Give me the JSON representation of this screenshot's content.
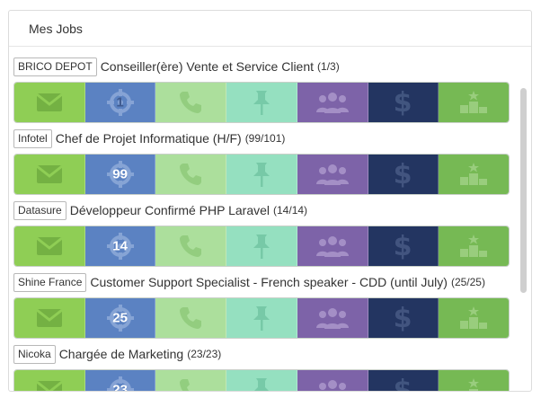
{
  "panel": {
    "title": "Mes Jobs"
  },
  "jobs": [
    {
      "company": "BRICO DEPOT",
      "title": "Conseiller(ère) Vente et Service Client",
      "count": "(1/3)",
      "target_count": "1"
    },
    {
      "company": "Infotel",
      "title": "Chef de Projet Informatique (H/F)",
      "count": "(99/101)",
      "target_count": "99"
    },
    {
      "company": "Datasure",
      "title": "Développeur Confirmé PHP Laravel",
      "count": "(14/14)",
      "target_count": "14"
    },
    {
      "company": "Shine France",
      "title": "Customer Support Specialist - French speaker - CDD (until July)",
      "count": "(25/25)",
      "target_count": "25"
    },
    {
      "company": "Nicoka",
      "title": "Chargée de Marketing",
      "count": "(23/23)",
      "target_count": "23"
    }
  ],
  "stage_icons": [
    "envelope-icon",
    "target-icon",
    "phone-icon",
    "pin-icon",
    "group-icon",
    "dollar-icon",
    "podium-icon"
  ],
  "colors": {
    "stage_1": "#8fce55",
    "stage_2": "#5b82c2",
    "stage_3": "#acdf9c",
    "stage_4": "#95e0c0",
    "stage_5": "#7d63a8",
    "stage_6": "#233561",
    "stage_7": "#76b954"
  }
}
